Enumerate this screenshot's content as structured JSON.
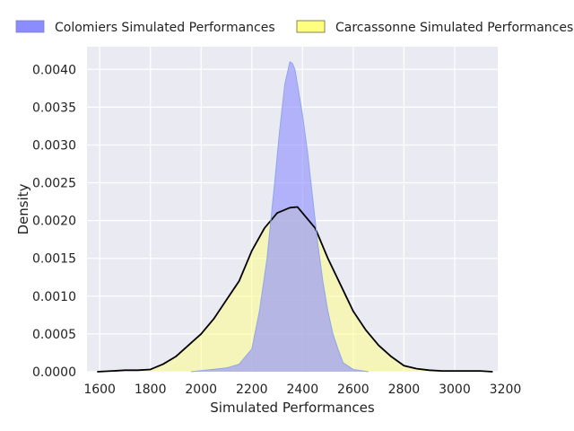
{
  "chart_data": {
    "type": "area",
    "title": "",
    "xlabel": "Simulated Performances",
    "ylabel": "Density",
    "xlim": [
      1550,
      3170
    ],
    "ylim": [
      0,
      0.0043
    ],
    "xticks": [
      1600,
      1800,
      2000,
      2200,
      2400,
      2600,
      2800,
      3000,
      3200
    ],
    "xtick_labels": [
      "1600",
      "1800",
      "2000",
      "2200",
      "2400",
      "2600",
      "2800",
      "3000",
      "3200"
    ],
    "yticks": [
      0,
      0.0005,
      0.001,
      0.0015,
      0.002,
      0.0025,
      0.003,
      0.0035,
      0.004
    ],
    "ytick_labels": [
      "0.0000",
      "0.0005",
      "0.0010",
      "0.0015",
      "0.0020",
      "0.0025",
      "0.0030",
      "0.0035",
      "0.0040"
    ],
    "grid": true,
    "legend_position": "top",
    "series": [
      {
        "name": "Colomiers Simulated Performances",
        "fill": "#8a8cff",
        "edge": "#8fa8e6",
        "x": [
          1960,
          2100,
          2150,
          2200,
          2230,
          2260,
          2290,
          2310,
          2330,
          2350,
          2360,
          2370,
          2380,
          2400,
          2420,
          2440,
          2460,
          2480,
          2500,
          2520,
          2540,
          2560,
          2600,
          2660
        ],
        "y": [
          0,
          5e-05,
          0.0001,
          0.0003,
          0.0008,
          0.0015,
          0.0025,
          0.0032,
          0.0038,
          0.0041,
          0.00408,
          0.004,
          0.0038,
          0.0034,
          0.0029,
          0.0023,
          0.0017,
          0.0012,
          0.0008,
          0.0005,
          0.0003,
          0.00012,
          3e-05,
          0
        ]
      },
      {
        "name": "Carcassonne Simulated Performances",
        "fill": "#ffff80",
        "edge": "#000000",
        "x": [
          1590,
          1650,
          1700,
          1750,
          1800,
          1850,
          1900,
          1950,
          2000,
          2050,
          2100,
          2150,
          2200,
          2250,
          2300,
          2350,
          2380,
          2400,
          2450,
          2500,
          2550,
          2600,
          2650,
          2700,
          2750,
          2800,
          2850,
          2900,
          2950,
          3000,
          3050,
          3100,
          3150
        ],
        "y": [
          0,
          1e-05,
          2e-05,
          2e-05,
          3e-05,
          0.0001,
          0.0002,
          0.00035,
          0.0005,
          0.0007,
          0.00095,
          0.0012,
          0.0016,
          0.0019,
          0.0021,
          0.00217,
          0.00218,
          0.0021,
          0.0019,
          0.0015,
          0.00115,
          0.0008,
          0.00055,
          0.00035,
          0.0002,
          8e-05,
          4e-05,
          2e-05,
          1e-05,
          1e-05,
          1e-05,
          1e-05,
          0
        ]
      }
    ]
  }
}
